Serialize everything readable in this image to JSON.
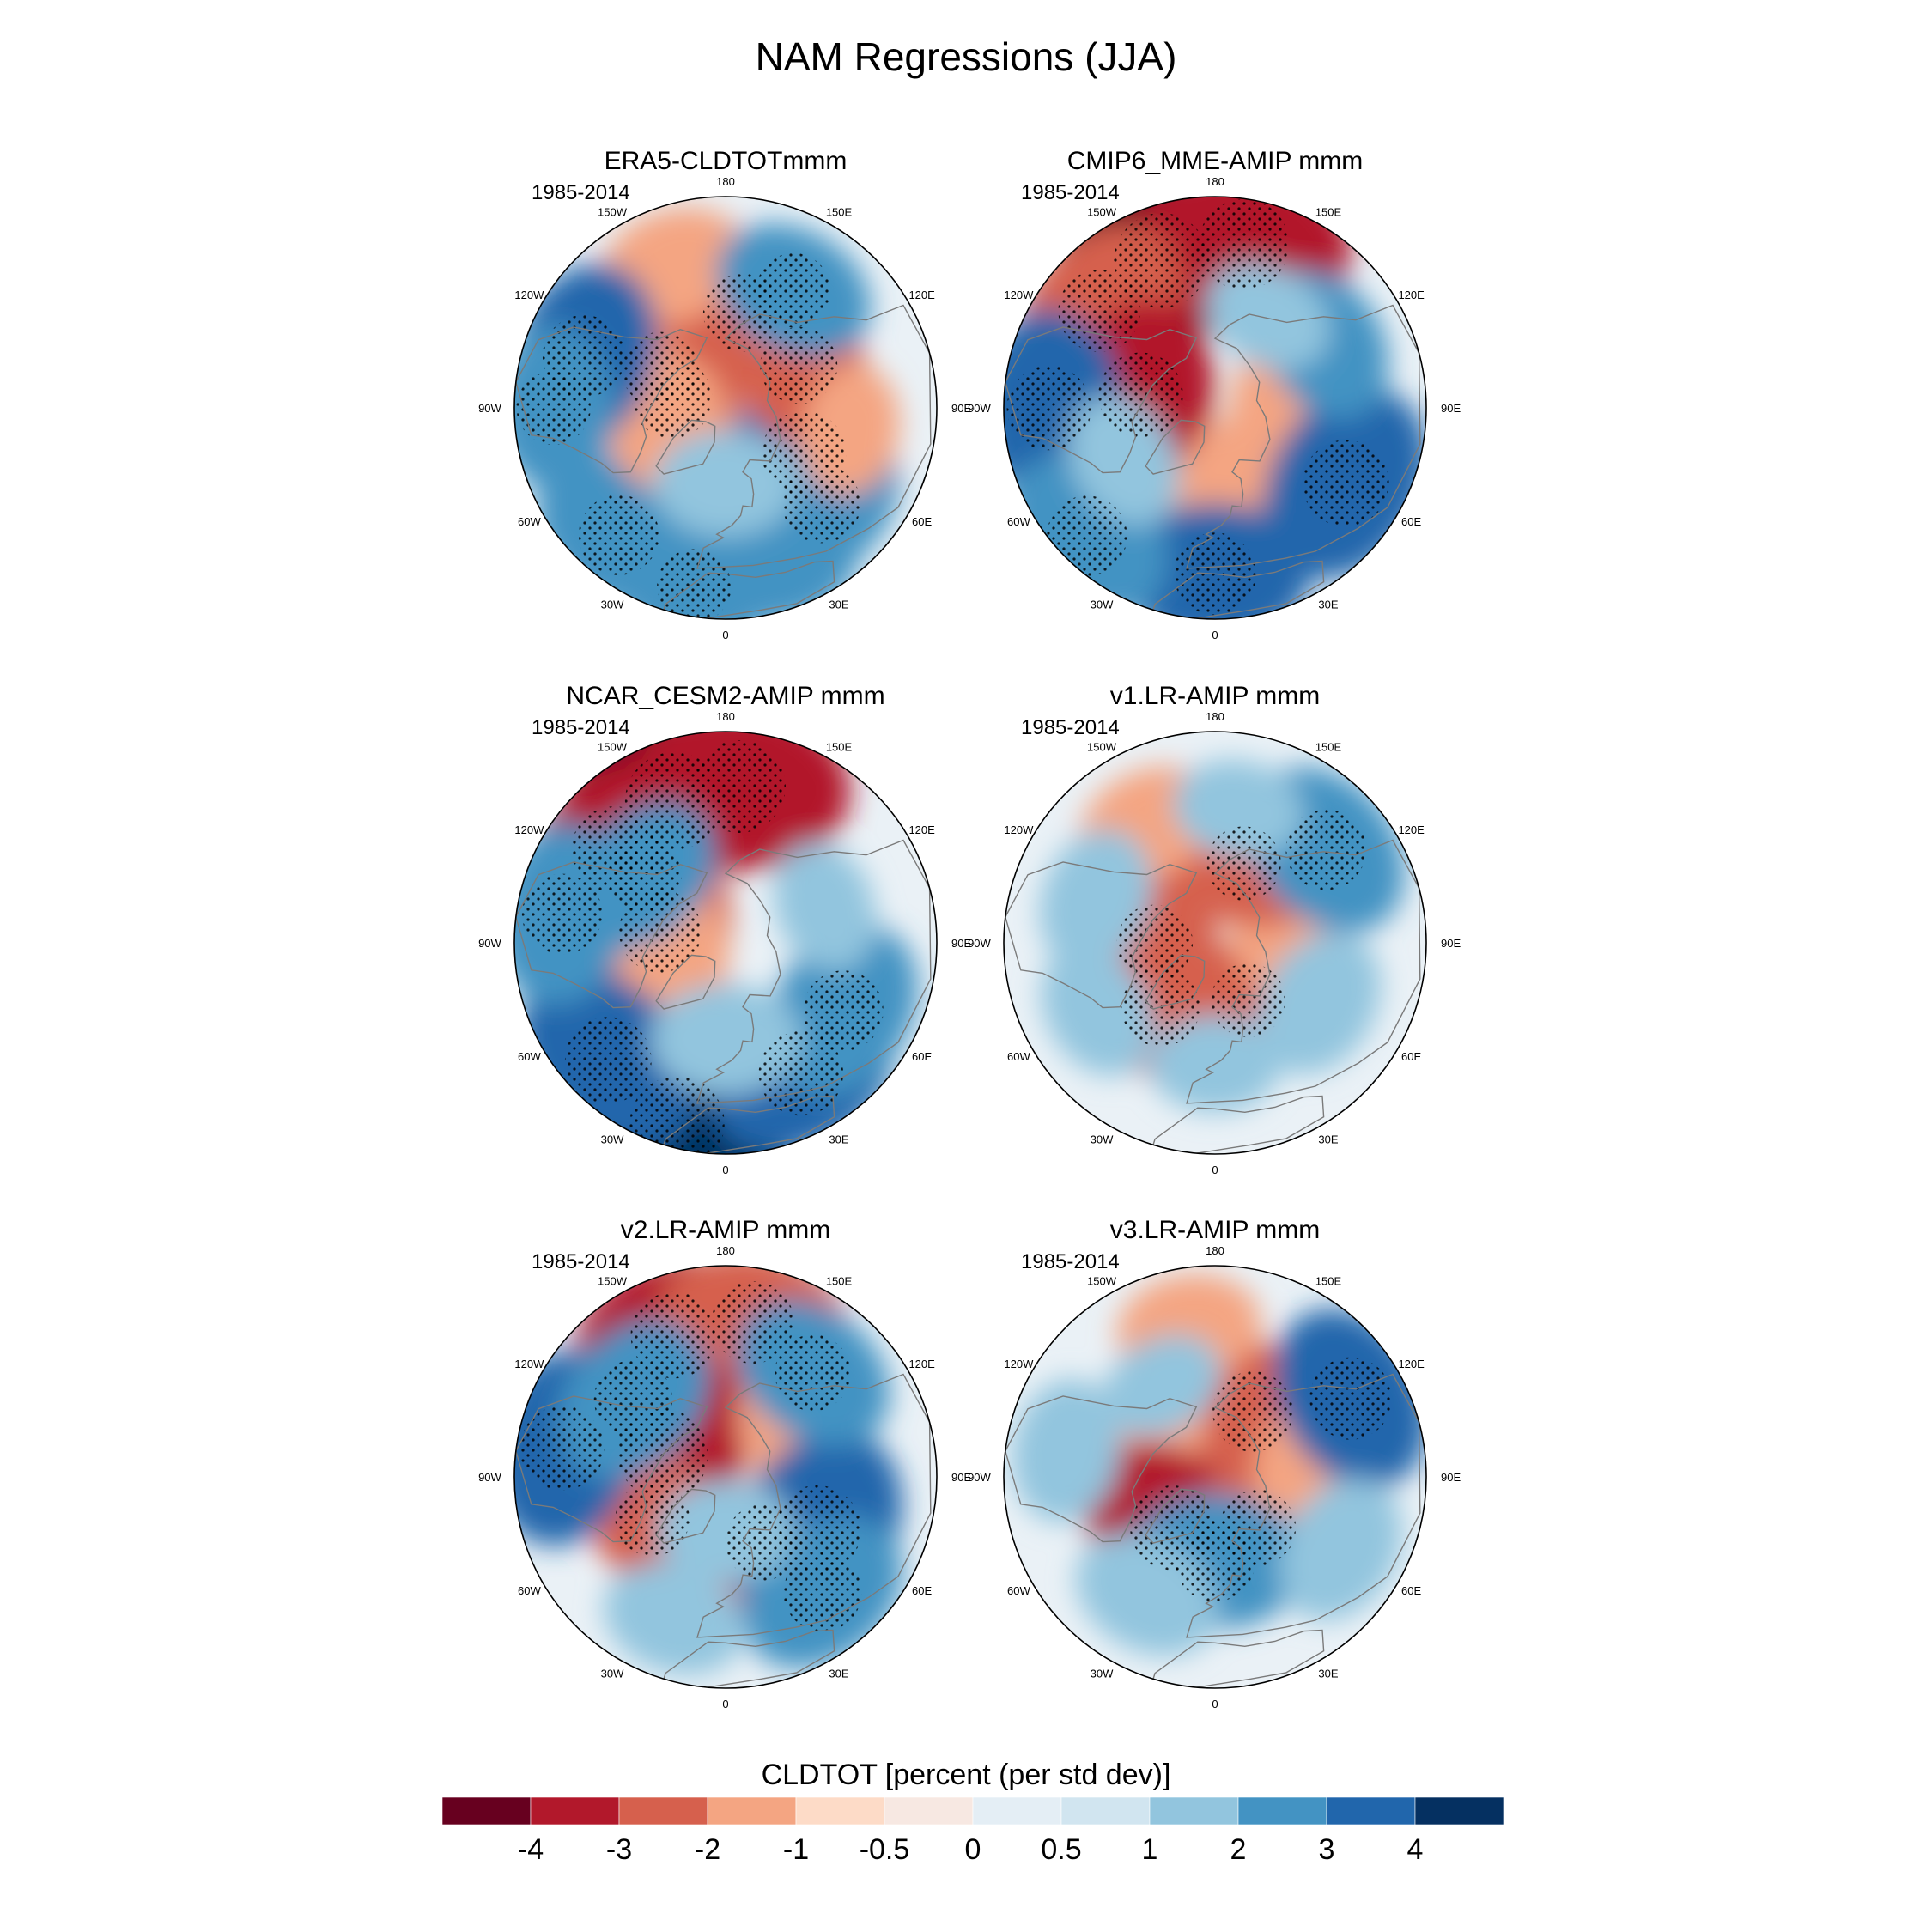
{
  "figure": {
    "title": "NAM Regressions (JJA)",
    "colorbar_label": "CLDTOT [percent (per std dev)]"
  },
  "colorbar": {
    "colors": [
      "#67001f",
      "#b2182b",
      "#d6604d",
      "#f4a582",
      "#fddbc7",
      "#f7e8e2",
      "#e4eef5",
      "#d1e5f0",
      "#92c5de",
      "#4393c3",
      "#2166ac",
      "#053061"
    ],
    "ticks": [
      "-4",
      "-3",
      "-2",
      "-1",
      "-0.5",
      "0",
      "0.5",
      "1",
      "2",
      "3",
      "4"
    ]
  },
  "lon_labels": [
    "180",
    "150E",
    "120E",
    "90E",
    "60E",
    "30E",
    "0",
    "30W",
    "60W",
    "90W",
    "120W",
    "150W"
  ],
  "panels": [
    {
      "title": "ERA5-CLDTOTmmm",
      "period": "1985-2014",
      "field": [
        {
          "lon": 60,
          "lat": 60,
          "v": 3.2
        },
        {
          "lon": 45,
          "lat": 45,
          "v": 2.6
        },
        {
          "lon": 20,
          "lat": 35,
          "v": 2.0
        },
        {
          "lon": -40,
          "lat": 35,
          "v": 2.8
        },
        {
          "lon": -10,
          "lat": 30,
          "v": 2.2
        },
        {
          "lon": -100,
          "lat": 72,
          "v": -2.8
        },
        {
          "lon": -120,
          "lat": 65,
          "v": -2.4
        },
        {
          "lon": -80,
          "lat": 70,
          "v": -2.0
        },
        {
          "lon": 120,
          "lat": 62,
          "v": -2.5
        },
        {
          "lon": 170,
          "lat": 58,
          "v": -2.6
        },
        {
          "lon": -160,
          "lat": 40,
          "v": -1.8
        },
        {
          "lon": -110,
          "lat": 40,
          "v": 3.0
        },
        {
          "lon": 150,
          "lat": 45,
          "v": 2.2
        },
        {
          "lon": 0,
          "lat": 65,
          "v": 1.6
        },
        {
          "lon": 80,
          "lat": 48,
          "v": -1.2
        },
        {
          "lon": -90,
          "lat": 33,
          "v": 2.2
        }
      ]
    },
    {
      "title": "CMIP6_MME-AMIP  mmm",
      "period": "1985-2014",
      "field": [
        {
          "lon": -160,
          "lat": 38,
          "v": -4.2
        },
        {
          "lon": 170,
          "lat": 35,
          "v": -3.8
        },
        {
          "lon": -130,
          "lat": 40,
          "v": -3.0
        },
        {
          "lon": -100,
          "lat": 65,
          "v": -3.2
        },
        {
          "lon": 30,
          "lat": 68,
          "v": -1.6
        },
        {
          "lon": 90,
          "lat": 68,
          "v": -1.4
        },
        {
          "lon": -30,
          "lat": 48,
          "v": -1.8
        },
        {
          "lon": -90,
          "lat": 35,
          "v": 3.2
        },
        {
          "lon": 60,
          "lat": 40,
          "v": 3.4
        },
        {
          "lon": 0,
          "lat": 35,
          "v": 3.0
        },
        {
          "lon": -45,
          "lat": 30,
          "v": 2.8
        },
        {
          "lon": 120,
          "lat": 48,
          "v": 2.0
        },
        {
          "lon": 150,
          "lat": 55,
          "v": 1.2
        },
        {
          "lon": -60,
          "lat": 55,
          "v": 1.4
        }
      ]
    },
    {
      "title": "NCAR_CESM2-AMIP  mmm",
      "period": "1985-2014",
      "field": [
        {
          "lon": -160,
          "lat": 40,
          "v": -4.5
        },
        {
          "lon": 175,
          "lat": 38,
          "v": -4.0
        },
        {
          "lon": -130,
          "lat": 42,
          "v": -3.4
        },
        {
          "lon": -100,
          "lat": 68,
          "v": -3.0
        },
        {
          "lon": -80,
          "lat": 72,
          "v": -1.8
        },
        {
          "lon": -15,
          "lat": 28,
          "v": 4.2
        },
        {
          "lon": 30,
          "lat": 40,
          "v": 3.2
        },
        {
          "lon": 60,
          "lat": 45,
          "v": 2.8
        },
        {
          "lon": -45,
          "lat": 35,
          "v": 3.4
        },
        {
          "lon": -100,
          "lat": 35,
          "v": 2.8
        },
        {
          "lon": -130,
          "lat": 55,
          "v": 2.2
        },
        {
          "lon": 0,
          "lat": 58,
          "v": 1.8
        },
        {
          "lon": 110,
          "lat": 55,
          "v": 1.2
        }
      ]
    },
    {
      "title": "v1.LR-AMIP  mmm",
      "period": "1985-2014",
      "field": [
        {
          "lon": -90,
          "lat": 70,
          "v": -2.4
        },
        {
          "lon": -40,
          "lat": 62,
          "v": -2.6
        },
        {
          "lon": 30,
          "lat": 68,
          "v": -2.2
        },
        {
          "lon": 100,
          "lat": 65,
          "v": -2.0
        },
        {
          "lon": 160,
          "lat": 62,
          "v": -2.2
        },
        {
          "lon": -150,
          "lat": 45,
          "v": -1.6
        },
        {
          "lon": 130,
          "lat": 42,
          "v": 2.8
        },
        {
          "lon": 60,
          "lat": 50,
          "v": 1.8
        },
        {
          "lon": -110,
          "lat": 48,
          "v": 1.6
        },
        {
          "lon": -60,
          "lat": 45,
          "v": 1.4
        },
        {
          "lon": 0,
          "lat": 50,
          "v": 1.2
        },
        {
          "lon": 170,
          "lat": 45,
          "v": 1.2
        }
      ]
    },
    {
      "title": "v2.LR-AMIP  mmm",
      "period": "1985-2014",
      "field": [
        {
          "lon": -160,
          "lat": 40,
          "v": -3.4
        },
        {
          "lon": 170,
          "lat": 38,
          "v": -3.0
        },
        {
          "lon": -110,
          "lat": 68,
          "v": -3.8
        },
        {
          "lon": -60,
          "lat": 62,
          "v": -2.2
        },
        {
          "lon": 30,
          "lat": 65,
          "v": -2.4
        },
        {
          "lon": 120,
          "lat": 62,
          "v": -1.8
        },
        {
          "lon": 60,
          "lat": 55,
          "v": 3.6
        },
        {
          "lon": 40,
          "lat": 40,
          "v": 2.6
        },
        {
          "lon": -100,
          "lat": 35,
          "v": 3.2
        },
        {
          "lon": -130,
          "lat": 50,
          "v": 2.6
        },
        {
          "lon": 140,
          "lat": 45,
          "v": 2.4
        },
        {
          "lon": -20,
          "lat": 40,
          "v": 1.6
        },
        {
          "lon": 0,
          "lat": 72,
          "v": 1.4
        }
      ]
    },
    {
      "title": "v3.LR-AMIP  mmm",
      "period": "1985-2014",
      "field": [
        {
          "lon": 150,
          "lat": 65,
          "v": -2.8
        },
        {
          "lon": -120,
          "lat": 62,
          "v": -2.0
        },
        {
          "lon": -40,
          "lat": 68,
          "v": -3.2
        },
        {
          "lon": 40,
          "lat": 68,
          "v": -2.4
        },
        {
          "lon": 90,
          "lat": 58,
          "v": -2.0
        },
        {
          "lon": -170,
          "lat": 40,
          "v": -1.6
        },
        {
          "lon": 120,
          "lat": 38,
          "v": 3.0
        },
        {
          "lon": 0,
          "lat": 62,
          "v": 2.8
        },
        {
          "lon": -30,
          "lat": 45,
          "v": 1.8
        },
        {
          "lon": -100,
          "lat": 40,
          "v": 1.6
        },
        {
          "lon": 60,
          "lat": 42,
          "v": 1.8
        },
        {
          "lon": -150,
          "lat": 55,
          "v": 1.0
        }
      ]
    }
  ]
}
